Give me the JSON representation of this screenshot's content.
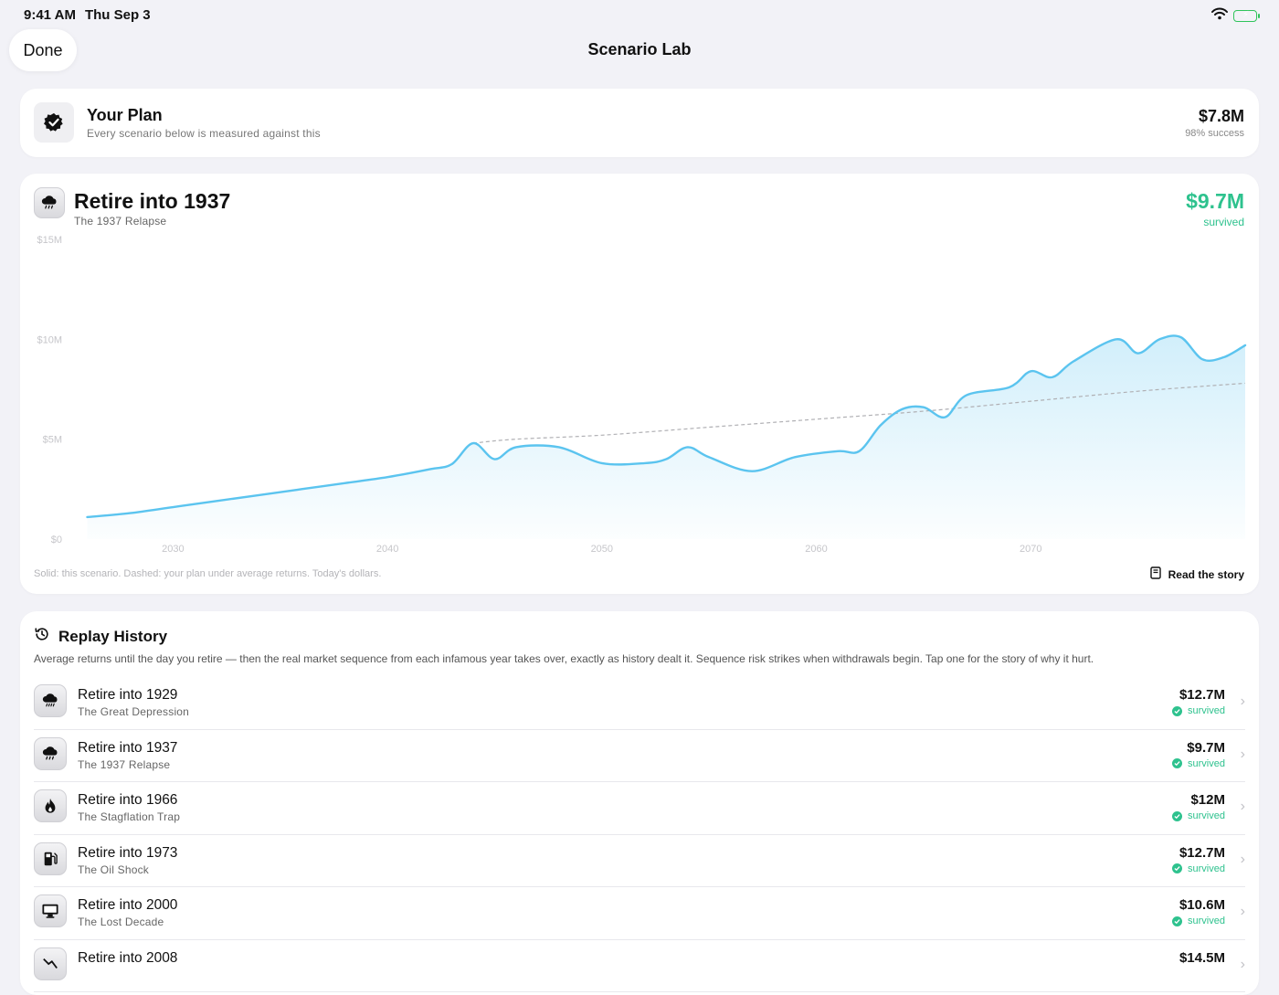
{
  "status_bar": {
    "time": "9:41 AM",
    "date": "Thu Sep 3"
  },
  "nav": {
    "done_label": "Done",
    "title": "Scenario Lab"
  },
  "plan": {
    "title": "Your Plan",
    "subtitle": "Every scenario below is measured against this",
    "value": "$7.8M",
    "success": "98% success",
    "icon": "verified-badge-icon"
  },
  "scenario": {
    "title": "Retire into 1937",
    "subtitle": "The 1937 Relapse",
    "value": "$9.7M",
    "status": "survived",
    "icon": "storm-cloud-icon",
    "note": "Solid: this scenario. Dashed: your plan under average returns. Today's dollars.",
    "read_story_label": "Read the story",
    "colors": {
      "scenario_line": "#5bc4ef",
      "plan_line": "#b0b0b4",
      "value_green": "#2ec28e"
    }
  },
  "chart_data": {
    "type": "area",
    "x_range": [
      2025,
      2080
    ],
    "y_range": [
      0,
      15
    ],
    "y_unit": "$M",
    "y_ticks": [
      "$0",
      "$5M",
      "$10M",
      "$15M"
    ],
    "y_tick_values": [
      0,
      5,
      10,
      15
    ],
    "x_ticks": [
      "2030",
      "2040",
      "2050",
      "2060",
      "2070"
    ],
    "x_tick_values": [
      2030,
      2040,
      2050,
      2060,
      2070
    ],
    "grid": false,
    "series": [
      {
        "style": "solid",
        "points": [
          [
            2026,
            1.1
          ],
          [
            2028,
            1.3
          ],
          [
            2030,
            1.6
          ],
          [
            2032,
            1.9
          ],
          [
            2034,
            2.2
          ],
          [
            2036,
            2.5
          ],
          [
            2038,
            2.8
          ],
          [
            2040,
            3.1
          ],
          [
            2042,
            3.5
          ],
          [
            2043,
            3.75
          ],
          [
            2044,
            4.8
          ],
          [
            2045,
            4.0
          ],
          [
            2046,
            4.6
          ],
          [
            2048,
            4.6
          ],
          [
            2050,
            3.8
          ],
          [
            2052,
            3.8
          ],
          [
            2053,
            4.0
          ],
          [
            2054,
            4.6
          ],
          [
            2055,
            4.1
          ],
          [
            2057,
            3.4
          ],
          [
            2059,
            4.1
          ],
          [
            2061,
            4.4
          ],
          [
            2062,
            4.4
          ],
          [
            2063,
            5.7
          ],
          [
            2064,
            6.5
          ],
          [
            2065,
            6.6
          ],
          [
            2066,
            6.1
          ],
          [
            2067,
            7.2
          ],
          [
            2069,
            7.6
          ],
          [
            2070,
            8.4
          ],
          [
            2071,
            8.1
          ],
          [
            2072,
            8.9
          ],
          [
            2074,
            10.0
          ],
          [
            2075,
            9.3
          ],
          [
            2076,
            10.0
          ],
          [
            2077,
            10.1
          ],
          [
            2078,
            9.0
          ],
          [
            2079,
            9.1
          ],
          [
            2080,
            9.7
          ]
        ]
      },
      {
        "style": "dashed",
        "points": [
          [
            2044,
            4.8
          ],
          [
            2046,
            5.0
          ],
          [
            2050,
            5.2
          ],
          [
            2055,
            5.6
          ],
          [
            2060,
            6.0
          ],
          [
            2065,
            6.4
          ],
          [
            2070,
            6.9
          ],
          [
            2075,
            7.4
          ],
          [
            2080,
            7.8
          ]
        ]
      }
    ]
  },
  "history": {
    "title": "Replay History",
    "icon": "history-icon",
    "description": "Average returns until the day you retire — then the real market sequence from each infamous year takes over, exactly as history dealt it. Sequence risk strikes when withdrawals begin. Tap one for the story of why it hurt.",
    "rows": [
      {
        "title": "Retire into 1929",
        "subtitle": "The Great Depression",
        "value": "$12.7M",
        "status": "survived",
        "icon": "rain-cloud-icon"
      },
      {
        "title": "Retire into 1937",
        "subtitle": "The 1937 Relapse",
        "value": "$9.7M",
        "status": "survived",
        "icon": "storm-cloud-icon"
      },
      {
        "title": "Retire into 1966",
        "subtitle": "The Stagflation Trap",
        "value": "$12M",
        "status": "survived",
        "icon": "flame-icon"
      },
      {
        "title": "Retire into 1973",
        "subtitle": "The Oil Shock",
        "value": "$12.7M",
        "status": "survived",
        "icon": "fuel-pump-icon"
      },
      {
        "title": "Retire into 2000",
        "subtitle": "The Lost Decade",
        "value": "$10.6M",
        "status": "survived",
        "icon": "desktop-icon"
      },
      {
        "title": "Retire into 2008",
        "subtitle": "",
        "value": "$14.5M",
        "status": "",
        "icon": "chart-icon"
      }
    ]
  }
}
